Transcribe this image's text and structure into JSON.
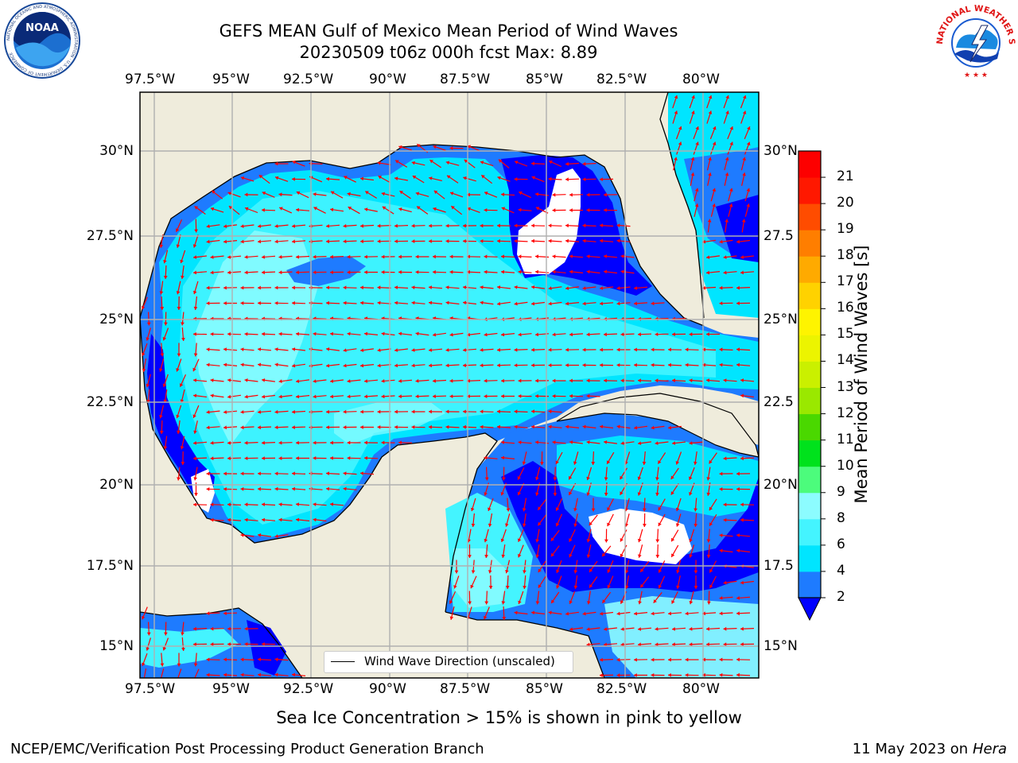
{
  "header": {
    "title_line1": "GEFS MEAN Gulf of Mexico Mean Period of Wind Waves",
    "title_line2": "20230509 t06z 000h fcst   Max: 8.89"
  },
  "logos": {
    "noaa_text": "NOAA",
    "noaa_ring_text": "NATIONAL OCEANIC AND ATMOSPHERIC ADMINISTRATION · U.S. DEPARTMENT OF COMMERCE",
    "nws_ring_text": "NATIONAL WEATHER SERVICE"
  },
  "map": {
    "lon_labels": [
      "97.5°W",
      "95°W",
      "92.5°W",
      "90°W",
      "87.5°W",
      "85°W",
      "82.5°W",
      "80°W"
    ],
    "lat_labels_left": [
      "30°N",
      "27.5°N",
      "25°N",
      "22.5°N",
      "20°N",
      "17.5°N",
      "15°N"
    ],
    "lat_labels_right": [
      "30°N",
      "27.5",
      "25°N",
      "22.5",
      "20°N",
      "17.5",
      "15°N"
    ],
    "legend_label": "Wind Wave Direction (unscaled)",
    "arrow_color": "#ff0000",
    "land_color": "#efecdc",
    "grid_color": "#b0b0b0"
  },
  "colorbar": {
    "label": "Mean Period of Wind Waves [s]",
    "tick_labels": [
      "2",
      "4",
      "6",
      "8",
      "9",
      "10",
      "11",
      "12",
      "13",
      "14",
      "15",
      "16",
      "17",
      "18",
      "19",
      "20",
      "21"
    ],
    "colors": [
      "#0000ff",
      "#1e7bff",
      "#00e5ff",
      "#44f4ff",
      "#8cfcff",
      "#4cfc7c",
      "#00e21c",
      "#4ad800",
      "#9ae800",
      "#caf000",
      "#ecf400",
      "#fef400",
      "#ffd200",
      "#ffaa00",
      "#ff7e00",
      "#ff4c00",
      "#ff1800",
      "#fd0000"
    ]
  },
  "notes": {
    "sea_ice": "Sea Ice Concentration > 15% is shown in pink to yellow"
  },
  "footer": {
    "left": "NCEP/EMC/Verification Post Processing Product Generation Branch",
    "date": "11 May 2023 on",
    "host": "Hera"
  }
}
